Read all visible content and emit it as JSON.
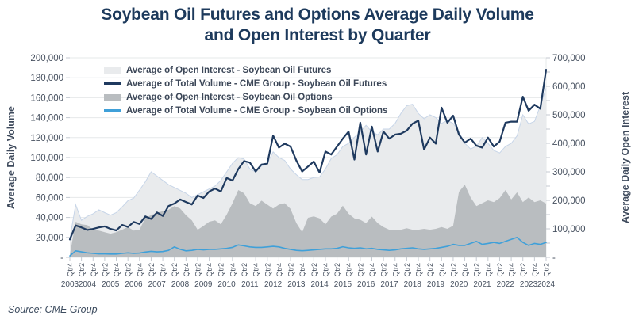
{
  "title": {
    "line1": "Soybean Oil Futures and Options Average Daily Volume",
    "line2": "and Open Interest by Quarter"
  },
  "source": "Source: CME Group",
  "legend": [
    {
      "label": "Average of Open Interest - Soybean Oil Futures",
      "swatch": "area",
      "color": "#e9ebed"
    },
    {
      "label": "Average of Total Volume - CME Group - Soybean Oil Futures",
      "swatch": "line",
      "color": "#1f3a5f"
    },
    {
      "label": "Average of Open Interest - Soybean Oil Options",
      "swatch": "area",
      "color": "#b9bdc0"
    },
    {
      "label": "Average of Total Volume - CME Group - Soybean Oil Options",
      "swatch": "line",
      "color": "#3fa0d9"
    }
  ],
  "colors": {
    "navy": "#1f3a5f",
    "light_blue": "#3fa0d9",
    "futures_oi_fill": "#e9ebed",
    "futures_oi_edge": "#c7d5e8",
    "options_oi_fill": "#b9bdc0",
    "gridline": "#e6e8ea",
    "tick_mark": "#c4cad1",
    "text": "#46505f"
  },
  "chart_data": {
    "type": "line",
    "title": "Soybean Oil Futures and Options Average Daily Volume and Open Interest by Quarter",
    "grid": true,
    "legend_position": "top-left-inside",
    "left_axis": {
      "label": "Average Daily Volume",
      "max": 200000,
      "tick_step": 20000,
      "ticks": [
        "200,000",
        "180,000",
        "160,000",
        "140,000",
        "120,000",
        "100,000",
        "80,000",
        "60,000",
        "40,000",
        "20,000",
        "-"
      ]
    },
    "right_axis": {
      "label": "Average Daily Open Interest",
      "max": 700000,
      "tick_step": 100000,
      "ticks": [
        "700,000",
        "600,000",
        "500,000",
        "400,000",
        "300,000",
        "200,000",
        "100,000",
        "-"
      ]
    },
    "quarters": [
      "Qtr4 2003",
      "Qtr1 2004",
      "Qtr2 2004",
      "Qtr3 2004",
      "Qtr4 2004",
      "Qtr1 2005",
      "Qtr2 2005",
      "Qtr3 2005",
      "Qtr4 2005",
      "Qtr1 2006",
      "Qtr2 2006",
      "Qtr3 2006",
      "Qtr4 2006",
      "Qtr1 2007",
      "Qtr2 2007",
      "Qtr3 2007",
      "Qtr4 2007",
      "Qtr1 2008",
      "Qtr2 2008",
      "Qtr3 2008",
      "Qtr4 2008",
      "Qtr1 2009",
      "Qtr2 2009",
      "Qtr3 2009",
      "Qtr4 2009",
      "Qtr1 2010",
      "Qtr2 2010",
      "Qtr3 2010",
      "Qtr4 2010",
      "Qtr1 2011",
      "Qtr2 2011",
      "Qtr3 2011",
      "Qtr4 2011",
      "Qtr1 2012",
      "Qtr2 2012",
      "Qtr3 2012",
      "Qtr4 2012",
      "Qtr1 2013",
      "Qtr2 2013",
      "Qtr3 2013",
      "Qtr4 2013",
      "Qtr1 2014",
      "Qtr2 2014",
      "Qtr3 2014",
      "Qtr4 2014",
      "Qtr1 2015",
      "Qtr2 2015",
      "Qtr3 2015",
      "Qtr4 2015",
      "Qtr1 2016",
      "Qtr2 2016",
      "Qtr3 2016",
      "Qtr4 2016",
      "Qtr1 2017",
      "Qtr2 2017",
      "Qtr3 2017",
      "Qtr4 2017",
      "Qtr1 2018",
      "Qtr2 2018",
      "Qtr3 2018",
      "Qtr4 2018",
      "Qtr1 2019",
      "Qtr2 2019",
      "Qtr3 2019",
      "Qtr4 2019",
      "Qtr1 2020",
      "Qtr2 2020",
      "Qtr3 2020",
      "Qtr4 2020",
      "Qtr1 2021",
      "Qtr2 2021",
      "Qtr3 2021",
      "Qtr4 2021",
      "Qtr1 2022",
      "Qtr2 2022",
      "Qtr3 2022",
      "Qtr4 2022",
      "Qtr1 2023",
      "Qtr2 2023",
      "Qtr3 2023",
      "Qtr4 2023",
      "Qtr1 2024",
      "Qtr2 2024"
    ],
    "series": [
      {
        "name": "Average of Open Interest - Soybean Oil Futures",
        "style": "area",
        "axis": "right",
        "color": "#e9ebed",
        "edge": "#c7d5e8",
        "values": [
          65000,
          185000,
          130000,
          144000,
          153000,
          167000,
          157000,
          148000,
          157000,
          177000,
          199000,
          208000,
          236000,
          265000,
          300000,
          285000,
          270000,
          255000,
          245000,
          235000,
          225000,
          210000,
          220000,
          230000,
          240000,
          250000,
          270000,
          300000,
          330000,
          350000,
          345000,
          310000,
          300000,
          320000,
          330000,
          370000,
          350000,
          340000,
          310000,
          290000,
          273000,
          273000,
          280000,
          282000,
          310000,
          347000,
          360000,
          389000,
          400000,
          421000,
          440000,
          463000,
          440000,
          430000,
          450000,
          450000,
          470000,
          505000,
          532000,
          537000,
          505000,
          486000,
          500000,
          490000,
          470000,
          480000,
          470000,
          440000,
          400000,
          380000,
          390000,
          420000,
          400000,
          375000,
          366000,
          389000,
          400000,
          426000,
          500000,
          468000,
          477000,
          532000,
          593000
        ]
      },
      {
        "name": "Average of Open Interest - Soybean Oil Options",
        "style": "area",
        "axis": "right",
        "color": "#b9bdc0",
        "edge": "none",
        "values": [
          8000,
          125000,
          116000,
          113000,
          97000,
          94000,
          88000,
          83000,
          88000,
          97000,
          106000,
          94000,
          97000,
          139000,
          148000,
          157000,
          162000,
          167000,
          180000,
          171000,
          148000,
          130000,
          97000,
          110000,
          125000,
          130000,
          116000,
          150000,
          190000,
          236000,
          225000,
          190000,
          180000,
          199000,
          185000,
          171000,
          185000,
          190000,
          170000,
          120000,
          88000,
          139000,
          144000,
          137000,
          116000,
          143000,
          153000,
          181000,
          153000,
          137000,
          132000,
          120000,
          143000,
          120000,
          106000,
          97000,
          95000,
          97000,
          102000,
          97000,
          97000,
          100000,
          97000,
          100000,
          106000,
          100000,
          111000,
          230000,
          255000,
          210000,
          180000,
          190000,
          200000,
          194000,
          208000,
          236000,
          203000,
          228000,
          194000,
          210000,
          194000,
          200000,
          189000
        ]
      },
      {
        "name": "Average of Total Volume - CME Group - Soybean Oil Futures",
        "style": "line",
        "axis": "left",
        "color": "#1f3a5f",
        "width": 2.2,
        "values": [
          18000,
          32000,
          30000,
          27500,
          28500,
          30000,
          31000,
          28500,
          27000,
          32500,
          30500,
          35500,
          33500,
          41000,
          38500,
          45000,
          41500,
          51500,
          54000,
          58000,
          55500,
          53000,
          62000,
          59500,
          66000,
          69000,
          66000,
          79500,
          77000,
          88500,
          96500,
          95000,
          86000,
          93000,
          94000,
          122000,
          110000,
          114000,
          111000,
          97000,
          86000,
          91000,
          96000,
          85000,
          106000,
          103000,
          111000,
          119000,
          126000,
          98000,
          135000,
          103000,
          131000,
          106000,
          126000,
          119000,
          123000,
          124000,
          127000,
          134000,
          137000,
          108000,
          120000,
          114000,
          150000,
          135000,
          142000,
          123000,
          115000,
          119000,
          112000,
          110000,
          120000,
          111000,
          116000,
          135000,
          136000,
          136000,
          161000,
          147000,
          153000,
          149000,
          188000
        ]
      },
      {
        "name": "Average of Total Volume - CME Group - Soybean Oil Options",
        "style": "line",
        "axis": "left",
        "color": "#3fa0d9",
        "width": 1.6,
        "values": [
          1500,
          6500,
          5500,
          4500,
          4000,
          3500,
          3500,
          3300,
          3300,
          4000,
          4500,
          4000,
          4300,
          5300,
          6000,
          5500,
          5800,
          7000,
          10500,
          8000,
          6500,
          7000,
          8000,
          7500,
          8000,
          8000,
          8500,
          9000,
          10000,
          12500,
          11500,
          10500,
          10000,
          10000,
          10500,
          11000,
          10500,
          9000,
          8000,
          7000,
          6600,
          7000,
          7500,
          8000,
          8500,
          8500,
          9000,
          10600,
          9500,
          9000,
          9500,
          8500,
          9000,
          8000,
          7500,
          7000,
          7500,
          8500,
          9000,
          9500,
          8500,
          8000,
          8500,
          9000,
          10000,
          11000,
          13000,
          12000,
          12000,
          14000,
          16000,
          13000,
          14000,
          15000,
          14000,
          16000,
          18000,
          20000,
          15000,
          12000,
          14000,
          13000,
          15000
        ]
      }
    ]
  }
}
